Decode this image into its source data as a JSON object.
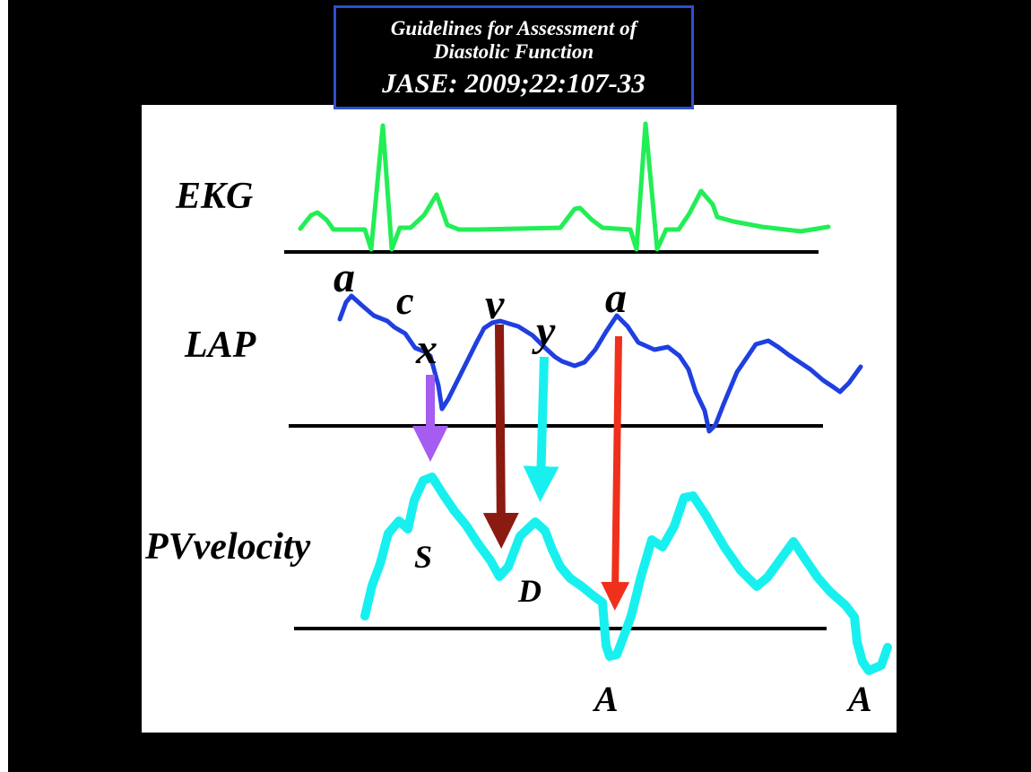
{
  "header": {
    "line1": "Guidelines for Assessment of",
    "line2": "Diastolic Function",
    "line3": "JASE: 2009;22:107-33"
  },
  "labels": {
    "ekg": "EKG",
    "lap": "LAP",
    "pv": "PVvelocity"
  },
  "lap_waves": {
    "a1": "a",
    "c": "c",
    "x": "x",
    "v": "v",
    "y": "y",
    "a2": "a"
  },
  "pv_waves": {
    "S": "S",
    "D": "D",
    "A1": "A",
    "A2": "A"
  },
  "colors": {
    "background": "#000000",
    "panel": "#ffffff",
    "title_border": "#2f4fd0",
    "ekg_trace": "#22ee55",
    "lap_trace": "#1f3fe0",
    "pv_trace": "#18f0f0",
    "arrow_x_to_S": "#a65cf0",
    "arrow_v_to_D": "#8b1a10",
    "arrow_y_to_D": "#18f0f0",
    "arrow_a_to_A": "#f0301c"
  }
}
